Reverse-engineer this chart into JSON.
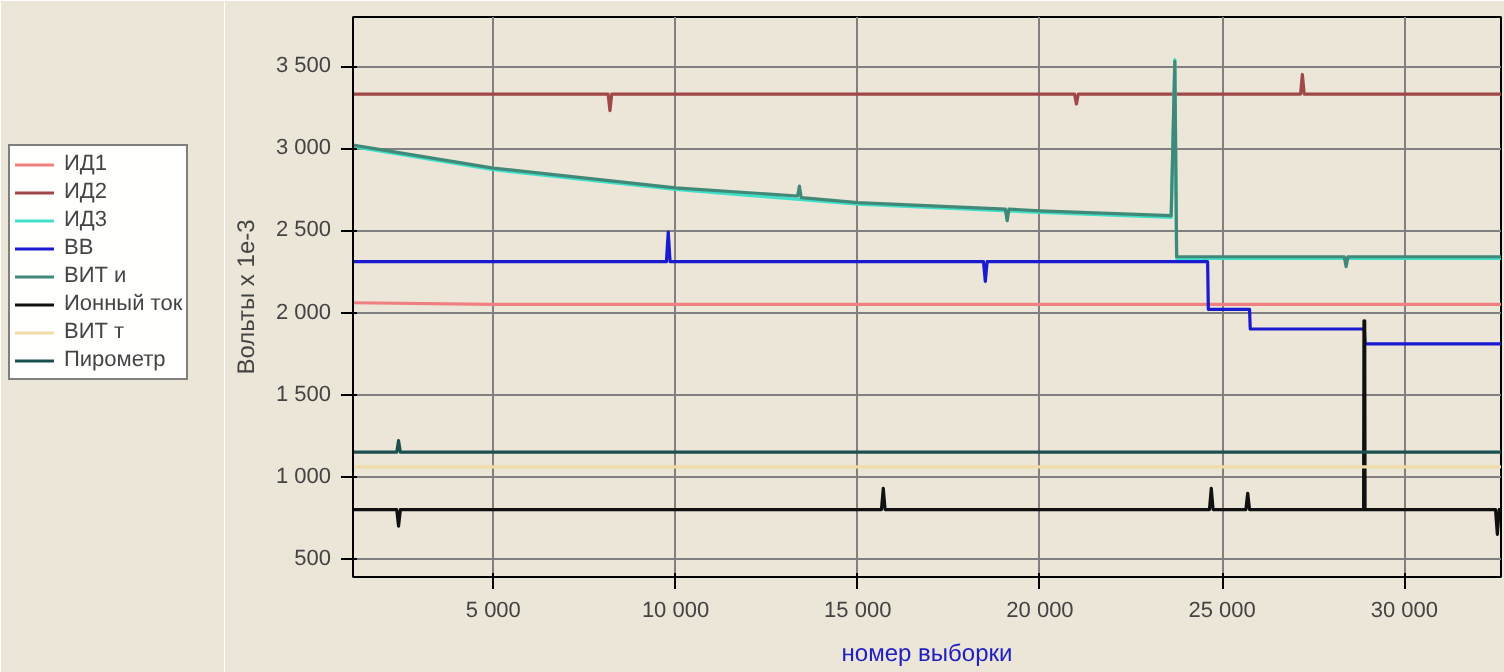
{
  "chart_data": {
    "type": "line",
    "xlabel": "номер выборки",
    "ylabel": "Вольты x 1e-3",
    "xlim": [
      1150,
      32650
    ],
    "ylim": [
      390,
      3800
    ],
    "xticks": [
      {
        "value": 5000,
        "label": "5 000"
      },
      {
        "value": 10000,
        "label": "10 000"
      },
      {
        "value": 15000,
        "label": "15 000"
      },
      {
        "value": 20000,
        "label": "20 000"
      },
      {
        "value": 25000,
        "label": "25 000"
      },
      {
        "value": 30000,
        "label": "30 000"
      }
    ],
    "yticks": [
      500,
      {
        "value": 1000,
        "label": "1 000"
      },
      {
        "value": 1500,
        "label": "1 500"
      },
      {
        "value": 2000,
        "label": "2 000"
      },
      {
        "value": 2500,
        "label": "2 500"
      },
      {
        "value": 3000,
        "label": "3 000"
      },
      {
        "value": 3500,
        "label": "3 500"
      }
    ],
    "grid": true,
    "legend": "left",
    "series": [
      {
        "name": "ИД1",
        "color": "#f08080",
        "x": [
          1150,
          5000,
          10000,
          15000,
          20000,
          25000,
          30000,
          32650
        ],
        "values": [
          2060,
          2050,
          2050,
          2050,
          2050,
          2050,
          2050,
          2050
        ]
      },
      {
        "name": "ИД2",
        "color": "#a04848",
        "x": [
          1150,
          8150,
          8200,
          8250,
          20950,
          21000,
          21050,
          27150,
          27200,
          27250,
          32650
        ],
        "values": [
          3330,
          3330,
          3230,
          3330,
          3330,
          3270,
          3330,
          3330,
          3450,
          3330,
          3330
        ]
      },
      {
        "name": "ИД3",
        "color": "#40e0c8",
        "x": [
          1150,
          5000,
          10000,
          15000,
          20000,
          23600,
          23700,
          23750,
          28000,
          32650
        ],
        "values": [
          3010,
          2870,
          2750,
          2660,
          2610,
          2580,
          3540,
          2330,
          2330,
          2330
        ]
      },
      {
        "name": "ВВ",
        "color": "#1a1ad0",
        "x": [
          1150,
          9750,
          9800,
          9850,
          18450,
          18500,
          18550,
          24600,
          24620,
          25750,
          25770,
          28900,
          28920,
          32650
        ],
        "values": [
          2310,
          2310,
          2490,
          2310,
          2310,
          2190,
          2310,
          2310,
          2020,
          2020,
          1900,
          1900,
          1810,
          1810
        ]
      },
      {
        "name": "ВИТ и",
        "color": "#408878",
        "x": [
          1150,
          5000,
          10000,
          13350,
          13400,
          13450,
          15000,
          19050,
          19100,
          19150,
          20000,
          23600,
          23700,
          23750,
          28350,
          28400,
          28450,
          32650
        ],
        "values": [
          3020,
          2880,
          2760,
          2710,
          2770,
          2700,
          2670,
          2630,
          2560,
          2630,
          2620,
          2590,
          3530,
          2340,
          2340,
          2280,
          2340,
          2340
        ]
      },
      {
        "name": "Ионный ток",
        "color": "#101010",
        "x": [
          1150,
          2350,
          2400,
          2450,
          15650,
          15700,
          15750,
          24650,
          24700,
          24750,
          25650,
          25700,
          25750,
          28880,
          28890,
          28910,
          28920,
          32500,
          32550,
          32600,
          32650
        ],
        "values": [
          800,
          800,
          700,
          800,
          800,
          930,
          800,
          800,
          930,
          800,
          800,
          900,
          800,
          800,
          1950,
          1950,
          800,
          800,
          650,
          800,
          800
        ]
      },
      {
        "name": "ВИТ т",
        "color": "#f0dca8",
        "x": [
          1150,
          10000,
          20000,
          32650
        ],
        "values": [
          1060,
          1060,
          1060,
          1060
        ]
      },
      {
        "name": "Пирометр",
        "color": "#1a5050",
        "x": [
          1150,
          2350,
          2400,
          2450,
          15000,
          32650
        ],
        "values": [
          1150,
          1150,
          1220,
          1150,
          1150,
          1150
        ]
      }
    ]
  }
}
